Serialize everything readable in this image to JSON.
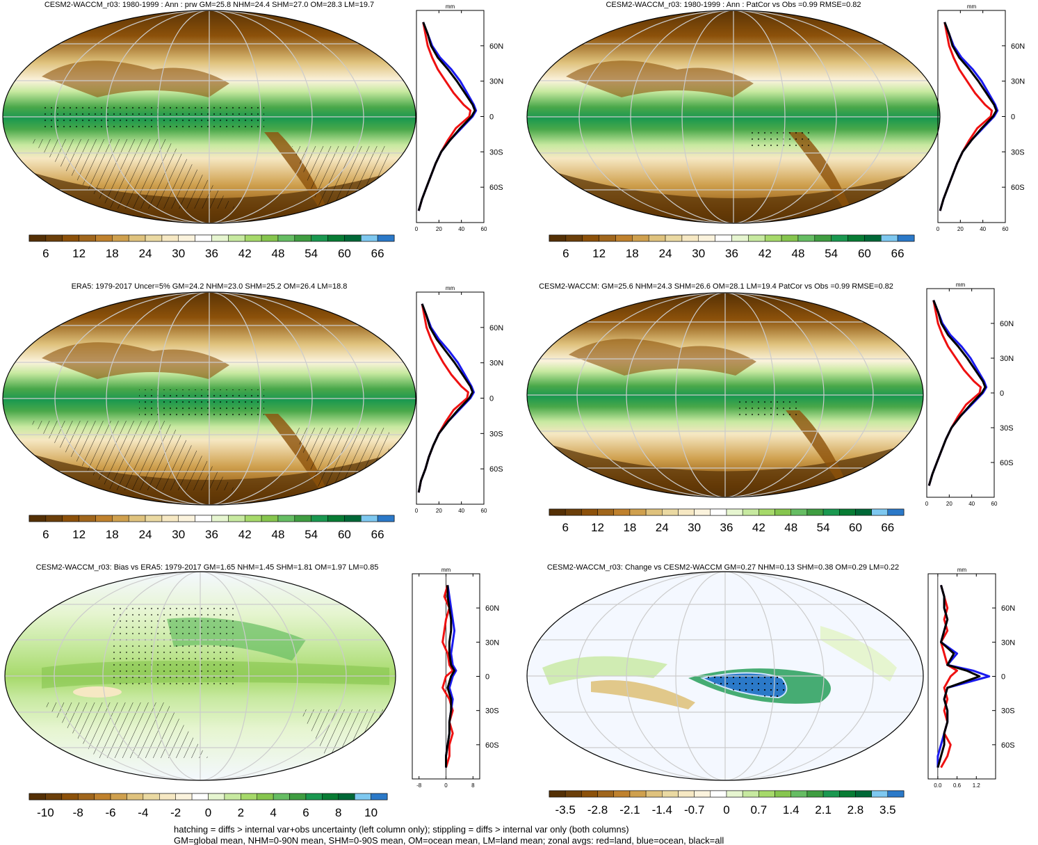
{
  "colors": {
    "red": "#ee1111",
    "blue": "#1a1aee",
    "black": "#000000"
  },
  "abs_colormap": [
    "#543005",
    "#6b3f0a",
    "#8c510a",
    "#a0661c",
    "#bf812d",
    "#cfa04e",
    "#dfc27d",
    "#ead9a2",
    "#f6e8c3",
    "#fbf3dd",
    "#ffffff",
    "#e6f5d0",
    "#c7e9a0",
    "#a6d96a",
    "#86c54e",
    "#66bd63",
    "#3f9d41",
    "#1a9850",
    "#087c34",
    "#006837",
    "#7ec8f0",
    "#2b79c8"
  ],
  "diff_colormap": [
    "#543005",
    "#6b3f0a",
    "#8c510a",
    "#a0661c",
    "#bf812d",
    "#cfa04e",
    "#dfc27d",
    "#ead9a2",
    "#f6e8c3",
    "#fbf3dd",
    "#ffffff",
    "#e6f5d0",
    "#c7e9a0",
    "#a6d96a",
    "#86c54e",
    "#66bd63",
    "#3f9d41",
    "#1a9850",
    "#087c34",
    "#006837",
    "#7ec8f0",
    "#2b79c8"
  ],
  "panels": [
    {
      "title": "CESM2-WACCM_r03: 1980-1999 : Ann : prw GM=25.8 NHM=24.4 SHM=27.0 OM=28.3 LM=19.7",
      "colorbar_labels": [
        "6",
        "12",
        "18",
        "24",
        "30",
        "36",
        "42",
        "48",
        "54",
        "60",
        "66"
      ],
      "zonal_unit": "mm",
      "zonal_xticks": [
        "0",
        "20",
        "40",
        "60"
      ],
      "zonal_yticks": [
        "60N",
        "30N",
        "0",
        "30S",
        "60S"
      ]
    },
    {
      "title": "CESM2-WACCM_r03: 1980-1999 : Ann : PatCor vs Obs =0.99 RMSE=0.82",
      "colorbar_labels": [
        "6",
        "12",
        "18",
        "24",
        "30",
        "36",
        "42",
        "48",
        "54",
        "60",
        "66"
      ],
      "zonal_unit": "mm",
      "zonal_xticks": [
        "0",
        "20",
        "40",
        "60"
      ],
      "zonal_yticks": [
        "60N",
        "30N",
        "0",
        "30S",
        "60S"
      ]
    },
    {
      "title": "ERA5: 1979-2017 Uncer=5% GM=24.2 NHM=23.0 SHM=25.2 OM=26.4 LM=18.8",
      "colorbar_labels": [
        "6",
        "12",
        "18",
        "24",
        "30",
        "36",
        "42",
        "48",
        "54",
        "60",
        "66"
      ],
      "zonal_unit": "mm",
      "zonal_xticks": [
        "0",
        "20",
        "40",
        "60"
      ],
      "zonal_yticks": [
        "60N",
        "30N",
        "0",
        "30S",
        "60S"
      ]
    },
    {
      "title": "CESM2-WACCM: GM=25.6 NHM=24.3 SHM=26.6 OM=28.1 LM=19.4 PatCor vs Obs =0.99 RMSE=0.82",
      "colorbar_labels": [
        "6",
        "12",
        "18",
        "24",
        "30",
        "36",
        "42",
        "48",
        "54",
        "60",
        "66"
      ],
      "zonal_unit": "mm",
      "zonal_xticks": [
        "0",
        "20",
        "40",
        "60"
      ],
      "zonal_yticks": [
        "60N",
        "30N",
        "0",
        "30S",
        "60S"
      ]
    },
    {
      "title": "CESM2-WACCM_r03: Bias vs ERA5: 1979-2017 GM=1.65 NHM=1.45 SHM=1.81 OM=1.97 LM=0.85",
      "colorbar_labels": [
        "-10",
        "-8",
        "-6",
        "-4",
        "-2",
        "0",
        "2",
        "4",
        "6",
        "8",
        "10"
      ],
      "zonal_unit": "mm",
      "zonal_xticks": [
        "-8",
        "0",
        "8"
      ],
      "zonal_yticks": [
        "60N",
        "30N",
        "0",
        "30S",
        "60S"
      ]
    },
    {
      "title": "CESM2-WACCM_r03: Change vs CESM2-WACCM GM=0.27 NHM=0.13 SHM=0.38 OM=0.29 LM=0.22",
      "colorbar_labels": [
        "-3.5",
        "-2.8",
        "-2.1",
        "-1.4",
        "-0.7",
        "0",
        "0.7",
        "1.4",
        "2.1",
        "2.8",
        "3.5"
      ],
      "zonal_unit": "mm",
      "zonal_xticks": [
        "0.0",
        "0.6",
        "1.2"
      ],
      "zonal_yticks": [
        "60N",
        "30N",
        "0",
        "30S",
        "60S"
      ]
    }
  ],
  "footer": [
    "hatching = diffs > internal var+obs uncertainty (left column only); stippling = diffs > internal var only (both columns)",
    "GM=global mean, NHM=0-90N mean, SHM=0-90S mean, OM=ocean mean, LM=land mean; zonal avgs: red=land, blue=ocean, black=all"
  ],
  "chart_data": [
    {
      "type": "line",
      "title": "CESM2-WACCM_r03: 1980-1999 : Ann : prw GM=25.8 NHM=24.4 SHM=27.0 OM=28.3 LM=19.7",
      "xlabel": "mm",
      "xlim": [
        0,
        60
      ],
      "ylim": [
        -90,
        90
      ],
      "y": [
        80,
        70,
        60,
        50,
        40,
        30,
        20,
        10,
        5,
        0,
        -10,
        -20,
        -30,
        -40,
        -50,
        -60,
        -70,
        -80
      ],
      "series": [
        {
          "name": "land",
          "values": [
            6,
            8,
            10,
            14,
            19,
            26,
            33,
            42,
            48,
            47,
            35,
            28,
            22,
            17,
            13,
            9,
            5,
            2
          ]
        },
        {
          "name": "ocean",
          "values": [
            6,
            10,
            14,
            21,
            31,
            39,
            45,
            51,
            53,
            50,
            40,
            30,
            22,
            17,
            13,
            9,
            5,
            2
          ]
        },
        {
          "name": "all",
          "values": [
            6,
            10,
            13,
            19,
            28,
            36,
            43,
            50,
            52,
            49,
            39,
            30,
            22,
            17,
            13,
            9,
            5,
            2
          ]
        }
      ]
    },
    {
      "type": "line",
      "title": "CESM2-WACCM_r03: 1980-1999 : Ann : PatCor vs Obs =0.99 RMSE=0.82",
      "xlabel": "mm",
      "xlim": [
        0,
        60
      ],
      "ylim": [
        -90,
        90
      ],
      "y": [
        80,
        70,
        60,
        50,
        40,
        30,
        20,
        10,
        5,
        0,
        -10,
        -20,
        -30,
        -40,
        -50,
        -60,
        -70,
        -80
      ],
      "series": [
        {
          "name": "land",
          "values": [
            6,
            8,
            10,
            14,
            19,
            26,
            33,
            42,
            48,
            47,
            35,
            28,
            22,
            17,
            13,
            9,
            5,
            2
          ]
        },
        {
          "name": "ocean",
          "values": [
            6,
            10,
            14,
            21,
            31,
            39,
            45,
            51,
            53,
            50,
            40,
            30,
            22,
            17,
            13,
            9,
            5,
            2
          ]
        },
        {
          "name": "all",
          "values": [
            6,
            10,
            13,
            19,
            28,
            36,
            43,
            50,
            52,
            49,
            39,
            30,
            22,
            17,
            13,
            9,
            5,
            2
          ]
        }
      ]
    },
    {
      "type": "line",
      "title": "ERA5: 1979-2017 Uncer=5% GM=24.2 NHM=23.0 SHM=25.2 OM=26.4 LM=18.8",
      "xlabel": "mm",
      "xlim": [
        0,
        60
      ],
      "ylim": [
        -90,
        90
      ],
      "y": [
        80,
        70,
        60,
        50,
        40,
        30,
        20,
        10,
        5,
        0,
        -10,
        -20,
        -30,
        -40,
        -50,
        -60,
        -70,
        -80
      ],
      "series": [
        {
          "name": "land",
          "values": [
            5,
            7,
            9,
            13,
            18,
            24,
            31,
            40,
            46,
            45,
            33,
            26,
            20,
            15,
            11,
            8,
            4,
            2
          ]
        },
        {
          "name": "ocean",
          "values": [
            5,
            9,
            13,
            20,
            29,
            37,
            43,
            49,
            51,
            48,
            38,
            28,
            20,
            15,
            11,
            8,
            4,
            2
          ]
        },
        {
          "name": "all",
          "values": [
            5,
            9,
            12,
            18,
            26,
            34,
            41,
            48,
            50,
            47,
            37,
            28,
            20,
            15,
            11,
            8,
            4,
            2
          ]
        }
      ]
    },
    {
      "type": "line",
      "title": "CESM2-WACCM: GM=25.6 NHM=24.3 SHM=26.6 OM=28.1 LM=19.4 PatCor vs Obs =0.99 RMSE=0.82",
      "xlabel": "mm",
      "xlim": [
        0,
        60
      ],
      "ylim": [
        -90,
        90
      ],
      "y": [
        80,
        70,
        60,
        50,
        40,
        30,
        20,
        10,
        5,
        0,
        -10,
        -20,
        -30,
        -40,
        -50,
        -60,
        -70,
        -80
      ],
      "series": [
        {
          "name": "land",
          "values": [
            6,
            8,
            10,
            14,
            19,
            26,
            33,
            42,
            48,
            47,
            35,
            28,
            22,
            17,
            13,
            9,
            5,
            2
          ]
        },
        {
          "name": "ocean",
          "values": [
            6,
            10,
            14,
            21,
            31,
            39,
            45,
            51,
            53,
            50,
            40,
            30,
            22,
            17,
            13,
            9,
            5,
            2
          ]
        },
        {
          "name": "all",
          "values": [
            6,
            10,
            13,
            19,
            28,
            36,
            43,
            50,
            52,
            49,
            39,
            30,
            22,
            17,
            13,
            9,
            5,
            2
          ]
        }
      ]
    },
    {
      "type": "line",
      "title": "CESM2-WACCM_r03: Bias vs ERA5: 1979-2017 GM=1.65 NHM=1.45 SHM=1.81 OM=1.97 LM=0.85",
      "xlabel": "mm",
      "xlim": [
        -10,
        10
      ],
      "ylim": [
        -90,
        90
      ],
      "y": [
        80,
        70,
        60,
        50,
        40,
        30,
        20,
        10,
        5,
        0,
        -10,
        -20,
        -30,
        -40,
        -50,
        -60,
        -70,
        -80
      ],
      "series": [
        {
          "name": "land",
          "values": [
            0.5,
            -0.5,
            1,
            0,
            -0.5,
            -1,
            0.5,
            1,
            2,
            0,
            -1,
            1,
            2,
            1,
            2,
            1,
            1,
            0
          ]
        },
        {
          "name": "ocean",
          "values": [
            0.5,
            1,
            1.5,
            2,
            2.5,
            2,
            1.5,
            2,
            3,
            2,
            1,
            2,
            1.5,
            1,
            1,
            0.5,
            0,
            0
          ]
        },
        {
          "name": "all",
          "values": [
            0.5,
            0.5,
            1,
            1.5,
            1.5,
            1,
            1,
            1.5,
            2.5,
            1.5,
            0.5,
            1.5,
            1.5,
            1,
            1,
            0.5,
            0,
            0
          ]
        }
      ]
    },
    {
      "type": "line",
      "title": "CESM2-WACCM_r03: Change vs CESM2-WACCM GM=0.27 NHM=0.13 SHM=0.38 OM=0.29 LM=0.22",
      "xlabel": "mm",
      "xlim": [
        -0.3,
        1.8
      ],
      "ylim": [
        -90,
        90
      ],
      "y": [
        80,
        70,
        60,
        50,
        40,
        30,
        20,
        10,
        5,
        0,
        -10,
        -20,
        -30,
        -40,
        -50,
        -60,
        -70,
        -80
      ],
      "series": [
        {
          "name": "land",
          "values": [
            0.1,
            0.2,
            0.3,
            0.2,
            0.3,
            0.1,
            0.2,
            0.3,
            0.6,
            0.4,
            0.2,
            0.3,
            0.2,
            0.3,
            0.2,
            0.4,
            0.3,
            0.1
          ]
        },
        {
          "name": "ocean",
          "values": [
            0.1,
            0.2,
            0.2,
            0.3,
            0.2,
            0.1,
            0.6,
            0.3,
            1.1,
            1.6,
            0.3,
            0.2,
            0.3,
            0.3,
            0.2,
            0.1,
            0.0,
            0.0
          ]
        },
        {
          "name": "all",
          "values": [
            0.1,
            0.2,
            0.2,
            0.3,
            0.2,
            0.1,
            0.5,
            0.3,
            0.9,
            1.3,
            0.3,
            0.2,
            0.3,
            0.3,
            0.2,
            0.2,
            0.1,
            0.0
          ]
        }
      ]
    }
  ]
}
